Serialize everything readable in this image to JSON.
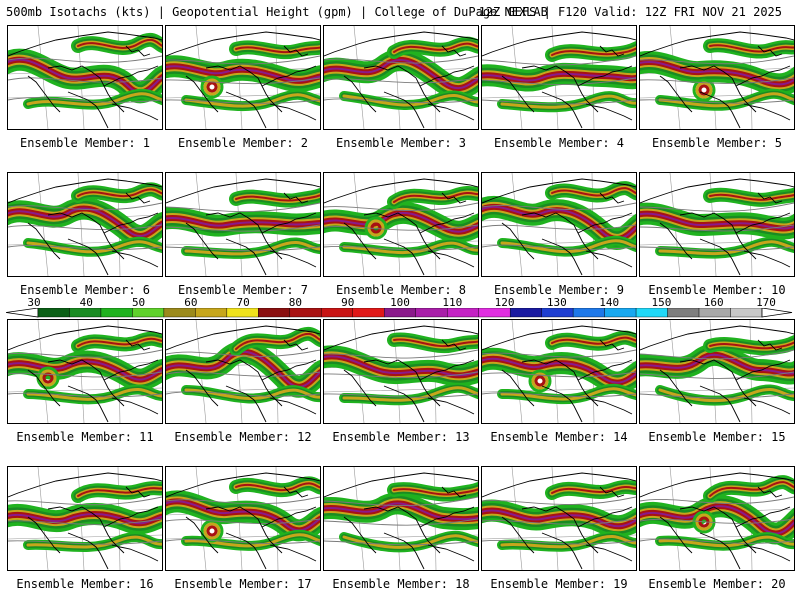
{
  "header": {
    "left_text": "500mb Isotachs (kts) | Geopotential Height (gpm) | College of DuPage NEXLAB",
    "right_text": "12Z GEFS | F120 Valid: 12Z FRI NOV 21 2025"
  },
  "colorbar": {
    "labels": [
      "30",
      "40",
      "50",
      "60",
      "70",
      "80",
      "90",
      "100",
      "110",
      "120",
      "130",
      "140",
      "150",
      "160",
      "170"
    ],
    "colors": [
      "#0b5f16",
      "#1a8b22",
      "#20b21f",
      "#5fd12b",
      "#9b8a1c",
      "#c6a61c",
      "#f0e21c",
      "#8a1010",
      "#a81212",
      "#c81414",
      "#e01818",
      "#8a1a8a",
      "#a81ea8",
      "#c422c4",
      "#e02ee0",
      "#1a1aa0",
      "#1e3ed0",
      "#1e78e8",
      "#18a8f0",
      "#20d8f8",
      "#7e7e7e",
      "#a8a8a8",
      "#c8c8c8"
    ]
  },
  "panels": [
    {
      "label": "Ensemble Member: 1"
    },
    {
      "label": "Ensemble Member: 2"
    },
    {
      "label": "Ensemble Member: 3"
    },
    {
      "label": "Ensemble Member: 4"
    },
    {
      "label": "Ensemble Member: 5"
    },
    {
      "label": "Ensemble Member: 6"
    },
    {
      "label": "Ensemble Member: 7"
    },
    {
      "label": "Ensemble Member: 8"
    },
    {
      "label": "Ensemble Member: 9"
    },
    {
      "label": "Ensemble Member: 10"
    },
    {
      "label": "Ensemble Member: 11"
    },
    {
      "label": "Ensemble Member: 12"
    },
    {
      "label": "Ensemble Member: 13"
    },
    {
      "label": "Ensemble Member: 14"
    },
    {
      "label": "Ensemble Member: 15"
    },
    {
      "label": "Ensemble Member: 16"
    },
    {
      "label": "Ensemble Member: 17"
    },
    {
      "label": "Ensemble Member: 18"
    },
    {
      "label": "Ensemble Member: 19"
    },
    {
      "label": "Ensemble Member: 20"
    }
  ]
}
